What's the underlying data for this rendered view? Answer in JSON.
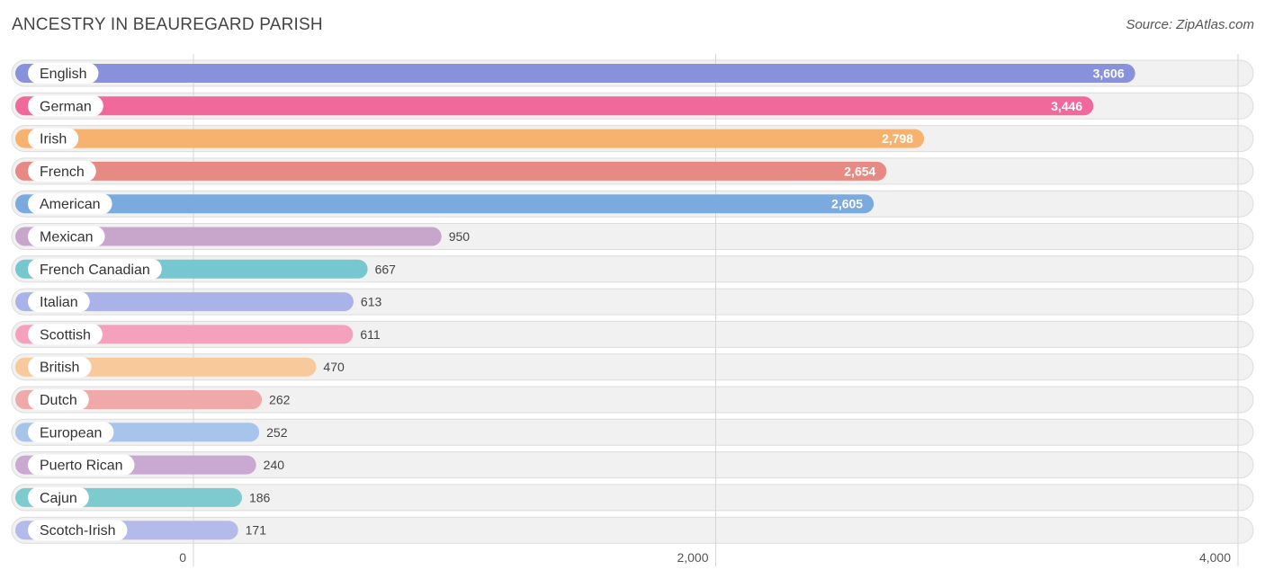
{
  "header": {
    "title": "ANCESTRY IN BEAUREGARD PARISH",
    "source": "Source: ZipAtlas.com"
  },
  "chart_data": {
    "type": "bar",
    "orientation": "horizontal",
    "categories": [
      "English",
      "German",
      "Irish",
      "French",
      "American",
      "Mexican",
      "French Canadian",
      "Italian",
      "Scottish",
      "British",
      "Dutch",
      "European",
      "Puerto Rican",
      "Cajun",
      "Scotch-Irish"
    ],
    "values": [
      3606,
      3446,
      2798,
      2654,
      2605,
      950,
      667,
      613,
      611,
      470,
      262,
      252,
      240,
      186,
      171
    ],
    "value_labels": [
      "3,606",
      "3,446",
      "2,798",
      "2,654",
      "2,605",
      "950",
      "667",
      "613",
      "611",
      "470",
      "262",
      "252",
      "240",
      "186",
      "171"
    ],
    "colors": [
      "#8891dc",
      "#f0699a",
      "#f7b26f",
      "#e88a84",
      "#7aaade",
      "#c8a6cb",
      "#76c7d0",
      "#aab2ea",
      "#f5a1bd",
      "#f8c99a",
      "#f0a9a9",
      "#a7c4ea",
      "#c9a9d1",
      "#7ecbcf",
      "#b4baea"
    ],
    "xlim": [
      0,
      4000
    ],
    "xticks": [
      0,
      2000,
      4000
    ],
    "xtick_labels": [
      "0",
      "2,000",
      "4,000"
    ],
    "grid": true,
    "legend": "none"
  }
}
